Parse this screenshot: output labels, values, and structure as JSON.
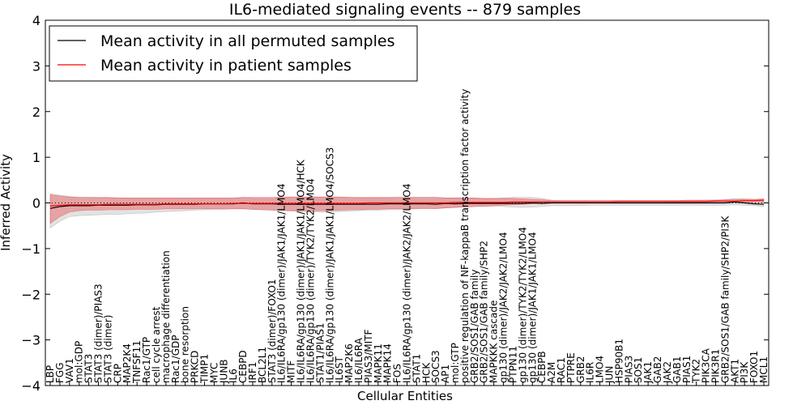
{
  "chart_data": {
    "type": "line",
    "title": "IL6-mediated signaling events -- 879 samples",
    "xlabel": "Cellular Entities",
    "ylabel": "Inferred Activity",
    "ylim": [
      -4,
      4
    ],
    "yticks": [
      -4,
      -3,
      -2,
      -1,
      0,
      1,
      2,
      3,
      4
    ],
    "grid": false,
    "legend_location": "top-left",
    "categories": [
      "LBP",
      "FGG",
      "VAV1",
      "mol:GDP",
      "STAT3",
      "STAT3 (dimer)/PIAS3",
      "STAT3 (dimer)",
      "CRP",
      "MAP2K4",
      "TNFSF11",
      "Rac1/GTP",
      "cell cycle arrest",
      "macrophage differentiation",
      "Rac1/GDP",
      "bone resorption",
      "PRKCD",
      "TIMP1",
      "MYC",
      "JUNB",
      "IL6",
      "CEBPD",
      "IRF1",
      "BCL2L1",
      "STAT3 (dimer)/FOXO1",
      "IL6/IL6RA/gp130 (dimer)/JAK1/JAK1/LMO4",
      "MITF",
      "IL6/IL6RA/gp130 (dimer)/JAK1/JAK1/LMO4/HCK",
      "IL6/IL6RA/gp130 (dimer)/TYK2/TYK2/LMO4",
      "STAT1/PIAS1",
      "IL6/IL6RA/gp130 (dimer)/JAK1/JAK1/LMO4/SOCS3",
      "IL6ST",
      "MAP2K6",
      "IL6/IL6RA",
      "PIAS3/MITF",
      "MAPK11",
      "MAPK14",
      "FOS",
      "IL6/IL6RA/gp130 (dimer)/JAK2/JAK2/LMO4",
      "STAT1",
      "HCK",
      "SOCS3",
      "AP1",
      "mol:GTP",
      "positive regulation of NF-kappaB transcription factor activity",
      "GRB2/SOS1/GAB family",
      "GRB2/SOS1/GAB family/SHP2",
      "MAPKKK cascade",
      "gp130 (dimer)/JAK2/JAK2/LMO4",
      "PTPN11",
      "gp130 (dimer)/TYK2/TYK2/LMO4",
      "gp130 (dimer)/JAK1/JAK1/LMO4",
      "CEBPB",
      "A2M",
      "RAC1",
      "PTPRE",
      "GRB2",
      "IL6R",
      "LMO4",
      "JUN",
      "HSP90B1",
      "PIAS3",
      "SOS1",
      "JAK1",
      "GAB2",
      "JAK2",
      "GAB1",
      "PIAS1",
      "TYK2",
      "PIK3CA",
      "PIK3R1",
      "GRB2/SOS1/GAB family/SHP2/PI3K",
      "AKT1",
      "PI3K",
      "FOXO1",
      "MCL1"
    ],
    "series": [
      {
        "name": "Mean activity in all permuted samples",
        "color": "#000000",
        "values": [
          -0.12,
          -0.08,
          -0.06,
          -0.06,
          -0.06,
          -0.05,
          -0.05,
          -0.05,
          -0.05,
          -0.04,
          -0.04,
          -0.04,
          -0.03,
          -0.03,
          -0.03,
          -0.03,
          -0.02,
          -0.02,
          -0.02,
          -0.02,
          0.0,
          -0.02,
          -0.02,
          -0.02,
          -0.03,
          -0.03,
          -0.03,
          -0.03,
          -0.03,
          -0.03,
          -0.03,
          -0.03,
          -0.03,
          -0.03,
          -0.03,
          -0.02,
          -0.02,
          -0.02,
          -0.02,
          -0.02,
          -0.03,
          -0.01,
          -0.02,
          -0.01,
          -0.01,
          -0.01,
          -0.01,
          -0.01,
          -0.01,
          -0.01,
          0.0,
          -0.01,
          0.0,
          0.0,
          0.0,
          0.0,
          0.0,
          0.0,
          0.0,
          0.0,
          0.0,
          0.0,
          0.0,
          0.0,
          0.0,
          0.0,
          0.0,
          0.0,
          0.0,
          0.0,
          0.0,
          0.02,
          0.0,
          -0.02,
          -0.03
        ],
        "band_lower": [
          -0.55,
          -0.4,
          -0.3,
          -0.28,
          -0.27,
          -0.26,
          -0.25,
          -0.25,
          -0.24,
          -0.23,
          -0.22,
          -0.2,
          -0.19,
          -0.18,
          -0.17,
          -0.16,
          -0.15,
          -0.14,
          -0.14,
          -0.13,
          -0.13,
          -0.14,
          -0.15,
          -0.16,
          -0.17,
          -0.18,
          -0.19,
          -0.19,
          -0.2,
          -0.2,
          -0.19,
          -0.18,
          -0.17,
          -0.16,
          -0.16,
          -0.15,
          -0.14,
          -0.14,
          -0.13,
          -0.12,
          -0.13,
          -0.11,
          -0.1,
          -0.09,
          -0.08,
          -0.08,
          -0.07,
          -0.08,
          -0.09,
          -0.1,
          -0.09,
          -0.08,
          -0.06,
          -0.06,
          -0.06,
          -0.06,
          -0.05,
          -0.05,
          -0.05,
          -0.05,
          -0.05,
          -0.05,
          -0.05,
          -0.05,
          -0.05,
          -0.05,
          -0.05,
          -0.05,
          -0.05,
          -0.05,
          -0.05,
          -0.04,
          -0.05,
          -0.06,
          -0.08
        ],
        "band_upper": [
          0.2,
          0.17,
          0.14,
          0.12,
          0.12,
          0.11,
          0.11,
          0.11,
          0.1,
          0.1,
          0.1,
          0.1,
          0.1,
          0.1,
          0.1,
          0.1,
          0.1,
          0.1,
          0.1,
          0.1,
          0.12,
          0.1,
          0.1,
          0.1,
          0.11,
          0.12,
          0.12,
          0.13,
          0.13,
          0.13,
          0.13,
          0.12,
          0.11,
          0.11,
          0.11,
          0.11,
          0.12,
          0.12,
          0.12,
          0.12,
          0.12,
          0.11,
          0.11,
          0.11,
          0.1,
          0.1,
          0.1,
          0.11,
          0.12,
          0.12,
          0.12,
          0.1,
          0.06,
          0.05,
          0.05,
          0.05,
          0.05,
          0.05,
          0.05,
          0.05,
          0.05,
          0.05,
          0.05,
          0.05,
          0.05,
          0.05,
          0.05,
          0.05,
          0.06,
          0.06,
          0.07,
          0.1,
          0.09,
          0.08,
          0.07
        ]
      },
      {
        "name": "Mean activity in patient samples",
        "color": "#ff0000",
        "values": [
          -0.07,
          -0.05,
          -0.04,
          -0.04,
          -0.04,
          -0.04,
          -0.03,
          -0.03,
          -0.03,
          -0.03,
          -0.03,
          -0.03,
          -0.02,
          -0.02,
          -0.02,
          -0.02,
          -0.02,
          -0.02,
          -0.02,
          -0.01,
          -0.01,
          -0.01,
          -0.01,
          -0.01,
          -0.01,
          -0.01,
          -0.01,
          -0.01,
          -0.01,
          -0.01,
          -0.01,
          -0.01,
          -0.01,
          0.0,
          0.0,
          0.0,
          0.0,
          0.0,
          0.0,
          0.0,
          0.0,
          0.0,
          0.01,
          0.01,
          0.01,
          0.01,
          0.01,
          0.01,
          0.02,
          0.02,
          0.02,
          0.02,
          0.02,
          0.02,
          0.02,
          0.02,
          0.02,
          0.02,
          0.02,
          0.03,
          0.03,
          0.03,
          0.03,
          0.03,
          0.03,
          0.03,
          0.03,
          0.03,
          0.03,
          0.04,
          0.04,
          0.04,
          0.05,
          0.05,
          0.06
        ],
        "band_lower": [
          -0.45,
          -0.3,
          -0.2,
          -0.17,
          -0.16,
          -0.16,
          -0.15,
          -0.15,
          -0.15,
          -0.14,
          -0.14,
          -0.14,
          -0.13,
          -0.13,
          -0.13,
          -0.13,
          -0.13,
          -0.13,
          -0.13,
          -0.13,
          -0.13,
          -0.14,
          -0.15,
          -0.16,
          -0.16,
          -0.17,
          -0.17,
          -0.17,
          -0.17,
          -0.17,
          -0.16,
          -0.15,
          -0.15,
          -0.14,
          -0.14,
          -0.13,
          -0.13,
          -0.13,
          -0.12,
          -0.12,
          -0.12,
          -0.11,
          -0.1,
          -0.09,
          -0.08,
          -0.07,
          -0.06,
          -0.05,
          -0.04,
          -0.03,
          -0.02,
          -0.01,
          0.0,
          0.0,
          0.0,
          0.0,
          0.0,
          0.0,
          0.0,
          0.0,
          0.0,
          0.0,
          0.0,
          0.0,
          0.01,
          0.01,
          0.01,
          0.01,
          0.01,
          0.02,
          0.02,
          0.02,
          0.02,
          0.02,
          0.02
        ],
        "band_upper": [
          0.18,
          0.15,
          0.13,
          0.12,
          0.12,
          0.12,
          0.12,
          0.11,
          0.11,
          0.11,
          0.11,
          0.11,
          0.11,
          0.11,
          0.11,
          0.11,
          0.11,
          0.11,
          0.11,
          0.11,
          0.12,
          0.12,
          0.12,
          0.12,
          0.13,
          0.13,
          0.13,
          0.13,
          0.13,
          0.13,
          0.13,
          0.12,
          0.12,
          0.12,
          0.12,
          0.12,
          0.12,
          0.12,
          0.12,
          0.12,
          0.12,
          0.11,
          0.11,
          0.11,
          0.11,
          0.1,
          0.1,
          0.1,
          0.1,
          0.09,
          0.08,
          0.07,
          0.05,
          0.05,
          0.05,
          0.05,
          0.05,
          0.05,
          0.05,
          0.05,
          0.05,
          0.05,
          0.05,
          0.05,
          0.05,
          0.05,
          0.06,
          0.06,
          0.06,
          0.06,
          0.07,
          0.07,
          0.08,
          0.08,
          0.09
        ]
      }
    ],
    "reference_line": {
      "y": 0,
      "style": "dotted"
    }
  }
}
